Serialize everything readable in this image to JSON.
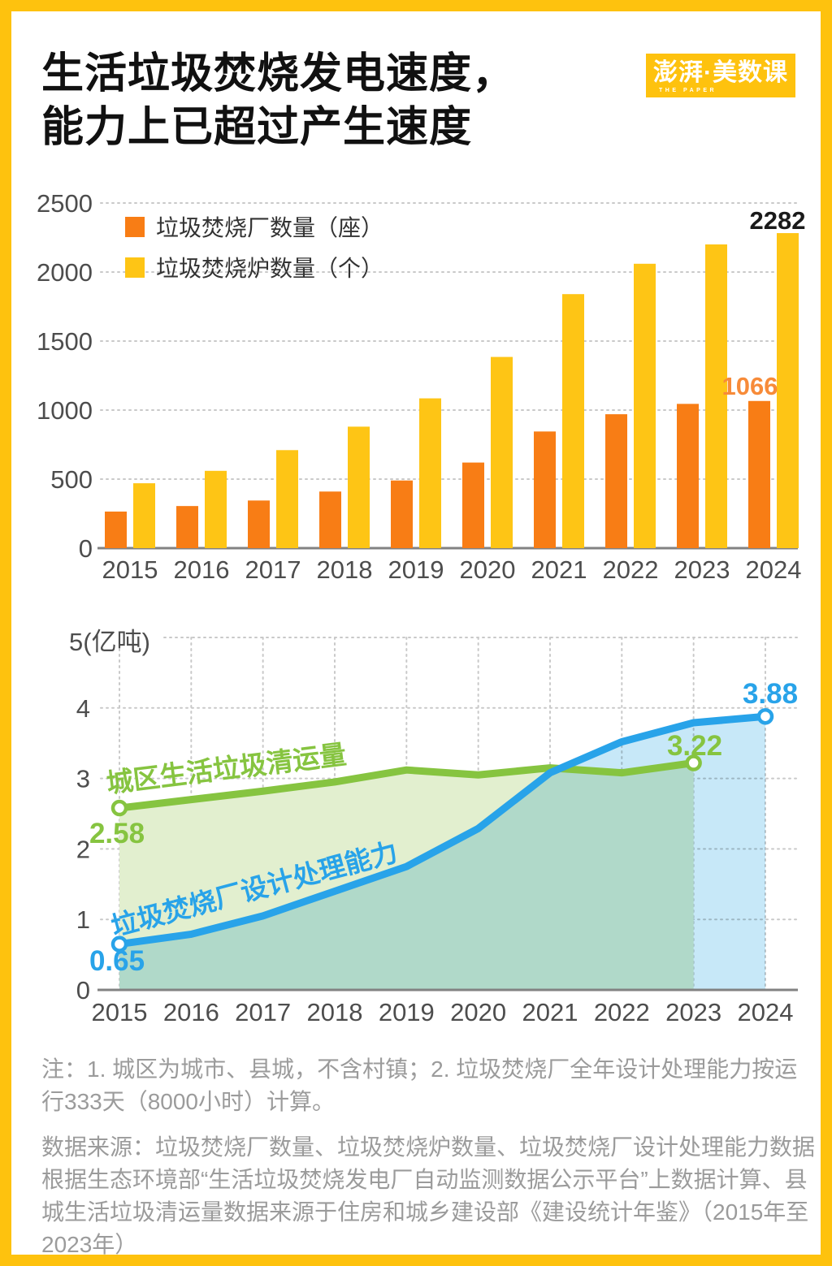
{
  "page": {
    "background": "#ffffff",
    "frame_color": "#FEC20E"
  },
  "header": {
    "title_line1": "生活垃圾焚烧发电速度，",
    "title_line2": "能力上已超过产生速度",
    "logo": {
      "text": "澎湃·美数课",
      "subtext": "THE PAPER",
      "bg": "#FEC20E",
      "fg": "#ffffff"
    }
  },
  "chart_data": [
    {
      "type": "bar",
      "categories": [
        "2015",
        "2016",
        "2017",
        "2018",
        "2019",
        "2020",
        "2021",
        "2022",
        "2023",
        "2024"
      ],
      "series": [
        {
          "name": "垃圾焚烧厂数量（座）",
          "color": "#F87D15",
          "values": [
            265,
            305,
            345,
            410,
            490,
            620,
            845,
            970,
            1045,
            1066
          ]
        },
        {
          "name": "垃圾焚烧炉数量（个）",
          "color": "#FEC515",
          "values": [
            470,
            560,
            710,
            880,
            1085,
            1385,
            1840,
            2060,
            2200,
            2282
          ]
        }
      ],
      "ylim": [
        0,
        2500
      ],
      "yticks": [
        0,
        500,
        1000,
        1500,
        2000,
        2500
      ],
      "grid": "dotted-horizontal",
      "legend_position": "top-left",
      "annotations": [
        {
          "text": "2282",
          "color": "#1a1a1a",
          "x": 943,
          "y": 268
        },
        {
          "text": "1066",
          "color": "#F78B39",
          "x": 909,
          "y": 472
        }
      ]
    },
    {
      "type": "line",
      "x": [
        "2015",
        "2016",
        "2017",
        "2018",
        "2019",
        "2020",
        "2021",
        "2022",
        "2023",
        "2024"
      ],
      "unit_label": "5(亿吨)",
      "ylim": [
        0,
        5
      ],
      "yticks": [
        0,
        1,
        2,
        3,
        4
      ],
      "grid": "dotted-both",
      "series": [
        {
          "name": "城区生活垃圾清运量",
          "color": "#86C440",
          "fill": "#E2EFCF",
          "values": [
            2.58,
            2.7,
            2.82,
            2.95,
            3.12,
            3.05,
            3.15,
            3.08,
            3.22
          ],
          "first_label": "2.58",
          "last_label": "3.22"
        },
        {
          "name": "垃圾焚烧厂设计处理能力",
          "color": "#28A3E9",
          "fill": "#C7E8F8",
          "values": [
            0.65,
            0.79,
            1.05,
            1.4,
            1.75,
            2.29,
            3.08,
            3.52,
            3.79,
            3.88
          ],
          "first_label": "0.65",
          "last_label": "3.88"
        }
      ]
    }
  ],
  "notes": {
    "note1": "注：1. 城区为城市、县城，不含村镇；2. 垃圾焚烧厂全年设计处理能力按运行333天（8000小时）计算。",
    "note2": "数据来源：垃圾焚烧厂数量、垃圾焚烧炉数量、垃圾焚烧厂设计处理能力数据根据生态环境部“生活垃圾焚烧发电厂自动监测数据公示平台”上数据计算、县城生活垃圾清运量数据来源于住房和城乡建设部《建设统计年鉴》（2015年至2023年）"
  }
}
